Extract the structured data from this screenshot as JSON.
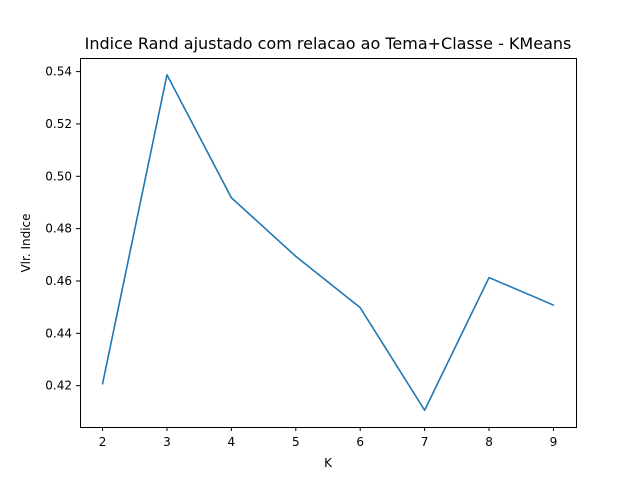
{
  "chart_data": {
    "type": "line",
    "title": "Indice Rand ajustado com relacao ao Tema+Classe - KMeans",
    "xlabel": "K",
    "ylabel": "Vlr. Indice",
    "x": [
      2,
      3,
      4,
      5,
      6,
      7,
      8,
      9
    ],
    "series": [
      {
        "values": [
          0.4207,
          0.5388,
          0.4918,
          0.4694,
          0.4498,
          0.4106,
          0.4613,
          0.4508
        ]
      }
    ],
    "xticks": [
      2,
      3,
      4,
      5,
      6,
      7,
      8,
      9
    ],
    "xtick_labels": [
      "2",
      "3",
      "4",
      "5",
      "6",
      "7",
      "8",
      "9"
    ],
    "yticks": [
      0.42,
      0.44,
      0.46,
      0.48,
      0.5,
      0.52,
      0.54
    ],
    "ytick_labels": [
      "0.42",
      "0.44",
      "0.46",
      "0.48",
      "0.50",
      "0.52",
      "0.54"
    ],
    "xlim": [
      1.65,
      9.35
    ],
    "ylim": [
      0.4042,
      0.5452
    ],
    "grid": false,
    "line_color": "#1f77b4"
  }
}
